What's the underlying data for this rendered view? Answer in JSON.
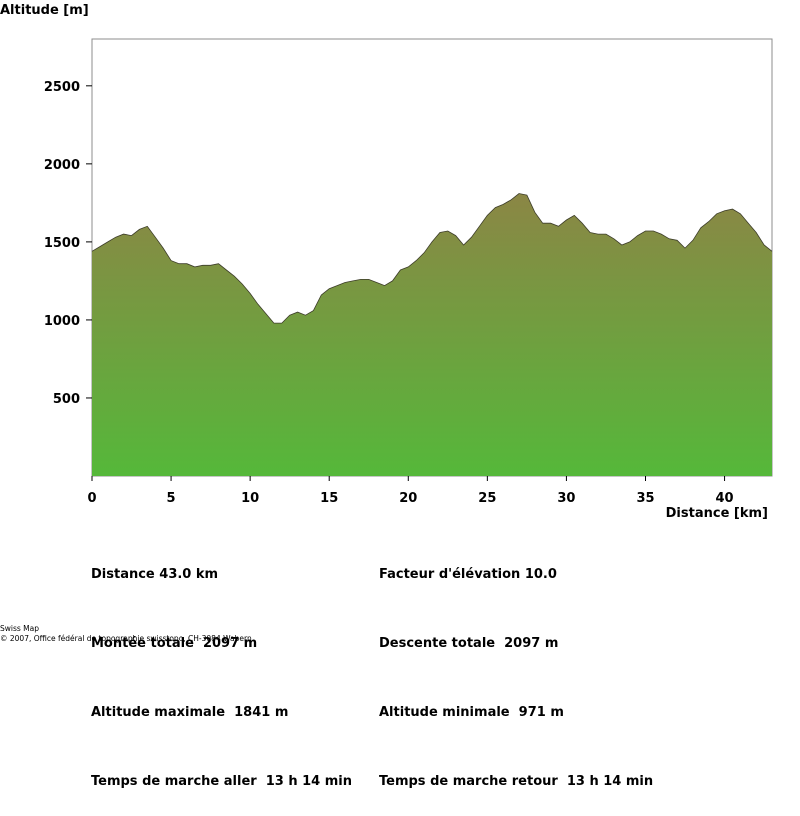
{
  "chart_data": {
    "type": "area",
    "ylabel": "Altitude [m]",
    "xlabel": "Distance [km]",
    "xlim": [
      0,
      43
    ],
    "ylim": [
      0,
      2800
    ],
    "xticks": [
      0,
      5,
      10,
      15,
      20,
      25,
      30,
      35,
      40
    ],
    "yticks": [
      500,
      1000,
      1500,
      2000,
      2500
    ],
    "grid": false,
    "fill_colors": {
      "top": "#8b8645",
      "bottom": "#55b83a"
    },
    "x": [
      0,
      0.5,
      1,
      1.5,
      2,
      2.5,
      3,
      3.5,
      4,
      4.5,
      5,
      5.5,
      6,
      6.5,
      7,
      7.5,
      8,
      8.5,
      9,
      9.5,
      10,
      10.5,
      11,
      11.5,
      12,
      12.5,
      13,
      13.5,
      14,
      14.5,
      15,
      15.5,
      16,
      16.5,
      17,
      17.5,
      18,
      18.5,
      19,
      19.5,
      20,
      20.5,
      21,
      21.5,
      22,
      22.5,
      23,
      23.5,
      24,
      24.5,
      25,
      25.5,
      26,
      26.5,
      27,
      27.5,
      28,
      28.5,
      29,
      29.5,
      30,
      30.5,
      31,
      31.5,
      32,
      32.5,
      33,
      33.5,
      34,
      34.5,
      35,
      35.5,
      36,
      36.5,
      37,
      37.5,
      38,
      38.5,
      39,
      39.5,
      40,
      40.5,
      41,
      41.5,
      42,
      42.5,
      43
    ],
    "y": [
      1440,
      1470,
      1500,
      1530,
      1550,
      1540,
      1580,
      1600,
      1530,
      1460,
      1380,
      1360,
      1360,
      1340,
      1350,
      1350,
      1360,
      1320,
      1280,
      1230,
      1170,
      1100,
      1040,
      980,
      980,
      1030,
      1050,
      1030,
      1060,
      1160,
      1200,
      1220,
      1240,
      1250,
      1260,
      1260,
      1240,
      1220,
      1250,
      1320,
      1340,
      1380,
      1430,
      1500,
      1560,
      1570,
      1540,
      1480,
      1530,
      1600,
      1670,
      1720,
      1740,
      1770,
      1810,
      1800,
      1690,
      1620,
      1620,
      1600,
      1640,
      1670,
      1620,
      1560,
      1550,
      1550,
      1520,
      1480,
      1500,
      1540,
      1570,
      1570,
      1550,
      1520,
      1510,
      1460,
      1510,
      1590,
      1630,
      1680,
      1700,
      1710,
      1680,
      1620,
      1560,
      1480,
      1440
    ],
    "annotations": [
      "Distance 43.0 km",
      "Facteur d'élévation 10.0",
      "Montée totale  2097 m",
      "Descente totale  2097 m",
      "Altitude maximale  1841 m",
      "Altitude minimale  971 m",
      "Temps de marche aller  13 h 14 min",
      "Temps de marche retour  13 h 14 min"
    ]
  },
  "stats": {
    "distance": "Distance 43.0 km",
    "elevation_factor": "Facteur d'élévation 10.0",
    "total_ascent": "Montée totale  2097 m",
    "total_descent": "Descente totale  2097 m",
    "max_altitude": "Altitude maximale  1841 m",
    "min_altitude": "Altitude minimale  971 m",
    "walk_time_out": "Temps de marche aller  13 h 14 min",
    "walk_time_return": "Temps de marche retour  13 h 14 min"
  },
  "credits": {
    "line1": "Swiss Map",
    "line2": "© 2007, Office fédéral de topographie swisstopo, CH-3084 Wabern"
  }
}
